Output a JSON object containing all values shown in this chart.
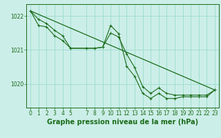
{
  "background_color": "#cceee8",
  "grid_color": "#99ddcc",
  "line_color": "#1a6b1a",
  "title": "Graphe pression niveau de la mer (hPa)",
  "xlim": [
    -0.5,
    23.5
  ],
  "ylim": [
    1019.3,
    1022.35
  ],
  "yticks": [
    1020,
    1021,
    1022
  ],
  "xticks": [
    0,
    1,
    2,
    3,
    4,
    5,
    7,
    8,
    9,
    10,
    11,
    12,
    13,
    14,
    15,
    16,
    17,
    18,
    19,
    20,
    21,
    22,
    23
  ],
  "title_fontsize": 7,
  "tick_fontsize": 5.5,
  "series1_x": [
    0,
    1,
    2,
    3,
    4,
    5,
    7,
    8,
    9,
    10,
    11,
    12,
    13,
    14,
    15,
    16,
    17,
    18,
    19,
    20,
    21,
    22,
    23
  ],
  "series1_y": [
    1022.15,
    1021.9,
    1021.78,
    1021.58,
    1021.42,
    1021.05,
    1021.05,
    1021.05,
    1021.08,
    1021.5,
    1021.38,
    1020.88,
    1020.48,
    1019.92,
    1019.72,
    1019.88,
    1019.72,
    1019.67,
    1019.67,
    1019.67,
    1019.67,
    1019.67,
    1019.82
  ],
  "series2_x": [
    0,
    1,
    2,
    3,
    4,
    5,
    7,
    8,
    9,
    10,
    11,
    12,
    13,
    14,
    15,
    16,
    17,
    18,
    19,
    20,
    21,
    22,
    23
  ],
  "series2_y": [
    1022.15,
    1021.72,
    1021.68,
    1021.42,
    1021.28,
    1021.05,
    1021.05,
    1021.05,
    1021.08,
    1021.72,
    1021.48,
    1020.52,
    1020.22,
    1019.72,
    1019.57,
    1019.72,
    1019.57,
    1019.57,
    1019.62,
    1019.62,
    1019.62,
    1019.62,
    1019.82
  ],
  "series3_x": [
    0,
    23
  ],
  "series3_y": [
    1022.15,
    1019.82
  ]
}
